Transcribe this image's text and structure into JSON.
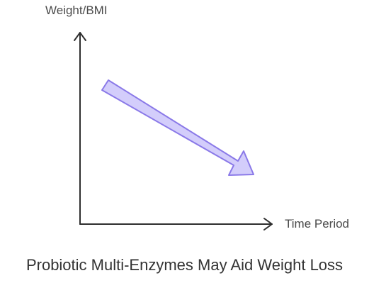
{
  "diagram": {
    "y_axis_label": "Weight/BMI",
    "x_axis_label": "Time Period",
    "title": "Probiotic Multi-Enzymes May Aid Weight Loss",
    "trend": "decreasing",
    "colors": {
      "axis": "#2f2f2f",
      "trend_arrow_fill": "#d3cdfb",
      "trend_arrow_stroke": "#8a79e8",
      "text": "#333333"
    }
  }
}
